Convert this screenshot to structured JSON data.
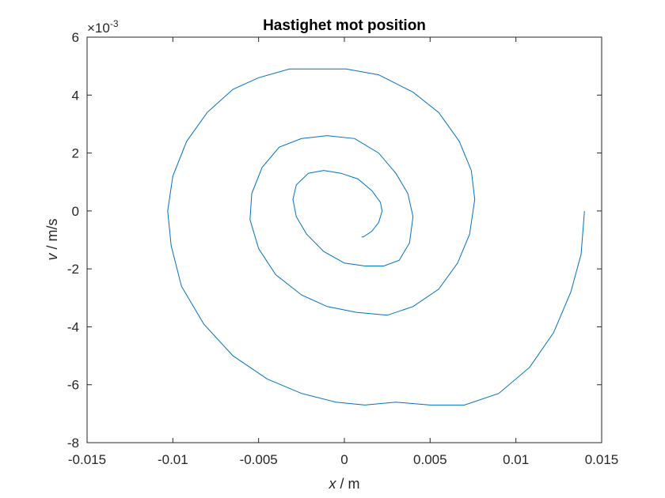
{
  "chart_data": {
    "type": "line",
    "title": "Hastighet mot position",
    "xlabel_var": "x",
    "xlabel_unit": " / m",
    "ylabel_var": "v",
    "ylabel_unit": " / m/s",
    "xlim": [
      -0.015,
      0.015
    ],
    "ylim": [
      -0.008,
      0.006
    ],
    "y_exponent_base": "×10",
    "y_exponent_power": "-3",
    "xticks": [
      -0.015,
      -0.01,
      -0.005,
      0,
      0.005,
      0.01,
      0.015
    ],
    "xtick_labels": [
      "-0.015",
      "-0.01",
      "-0.005",
      "0",
      "0.005",
      "0.01",
      "0.015"
    ],
    "yticks": [
      -0.008,
      -0.006,
      -0.004,
      -0.002,
      0,
      0.002,
      0.004,
      0.006
    ],
    "ytick_labels": [
      "-8",
      "-6",
      "-4",
      "-2",
      "0",
      "2",
      "4",
      "6"
    ],
    "grid": false,
    "line_color": "#0072BD",
    "series": [
      {
        "x": [
          0.014,
          0.0138,
          0.0132,
          0.0122,
          0.0108,
          0.009,
          0.007,
          0.005,
          0.003,
          0.0012,
          -0.0005,
          -0.0025,
          -0.0045,
          -0.0065,
          -0.0082,
          -0.0095,
          -0.0101,
          -0.0103,
          -0.01,
          -0.0092,
          -0.008,
          -0.0065,
          -0.005,
          -0.0032,
          -0.0015,
          0.0001,
          0.002,
          0.004,
          0.0055,
          0.0067,
          0.0074,
          0.0076,
          0.0073,
          0.0066,
          0.0055,
          0.004,
          0.0025,
          0.0007,
          -0.001,
          -0.0025,
          -0.004,
          -0.005,
          -0.0055,
          -0.0054,
          -0.0048,
          -0.0038,
          -0.0025,
          -0.001,
          0.0006,
          0.002,
          0.003,
          0.0037,
          0.004,
          0.0038,
          0.0032,
          0.0023,
          0.0012,
          0.0,
          -0.0012,
          -0.0022,
          -0.0028,
          -0.003,
          -0.0028,
          -0.0021,
          -0.0012,
          -0.0002,
          0.0008,
          0.0016,
          0.0021,
          0.0022,
          0.002,
          0.0016,
          0.0011,
          0.001
        ],
        "y": [
          0.0,
          -0.0015,
          -0.0028,
          -0.0042,
          -0.0054,
          -0.0063,
          -0.0067,
          -0.0067,
          -0.0066,
          -0.0067,
          -0.0066,
          -0.0063,
          -0.0058,
          -0.005,
          -0.0039,
          -0.0026,
          -0.0012,
          0.0,
          0.0012,
          0.0024,
          0.0034,
          0.0042,
          0.0046,
          0.0049,
          0.0049,
          0.0049,
          0.0047,
          0.0041,
          0.0034,
          0.0024,
          0.0014,
          0.0004,
          -0.0008,
          -0.0018,
          -0.0027,
          -0.0033,
          -0.0036,
          -0.0035,
          -0.0033,
          -0.0029,
          -0.0022,
          -0.0013,
          -0.0003,
          0.0006,
          0.0015,
          0.0022,
          0.0025,
          0.0026,
          0.0025,
          0.002,
          0.0013,
          0.0006,
          -0.0002,
          -0.0011,
          -0.0017,
          -0.0019,
          -0.0019,
          -0.0018,
          -0.0014,
          -0.0008,
          -0.0002,
          0.0004,
          0.0009,
          0.0013,
          0.0014,
          0.0013,
          0.0011,
          0.0007,
          0.0003,
          0.0,
          -0.0004,
          -0.0007,
          -0.0009,
          -0.0009
        ]
      }
    ]
  }
}
